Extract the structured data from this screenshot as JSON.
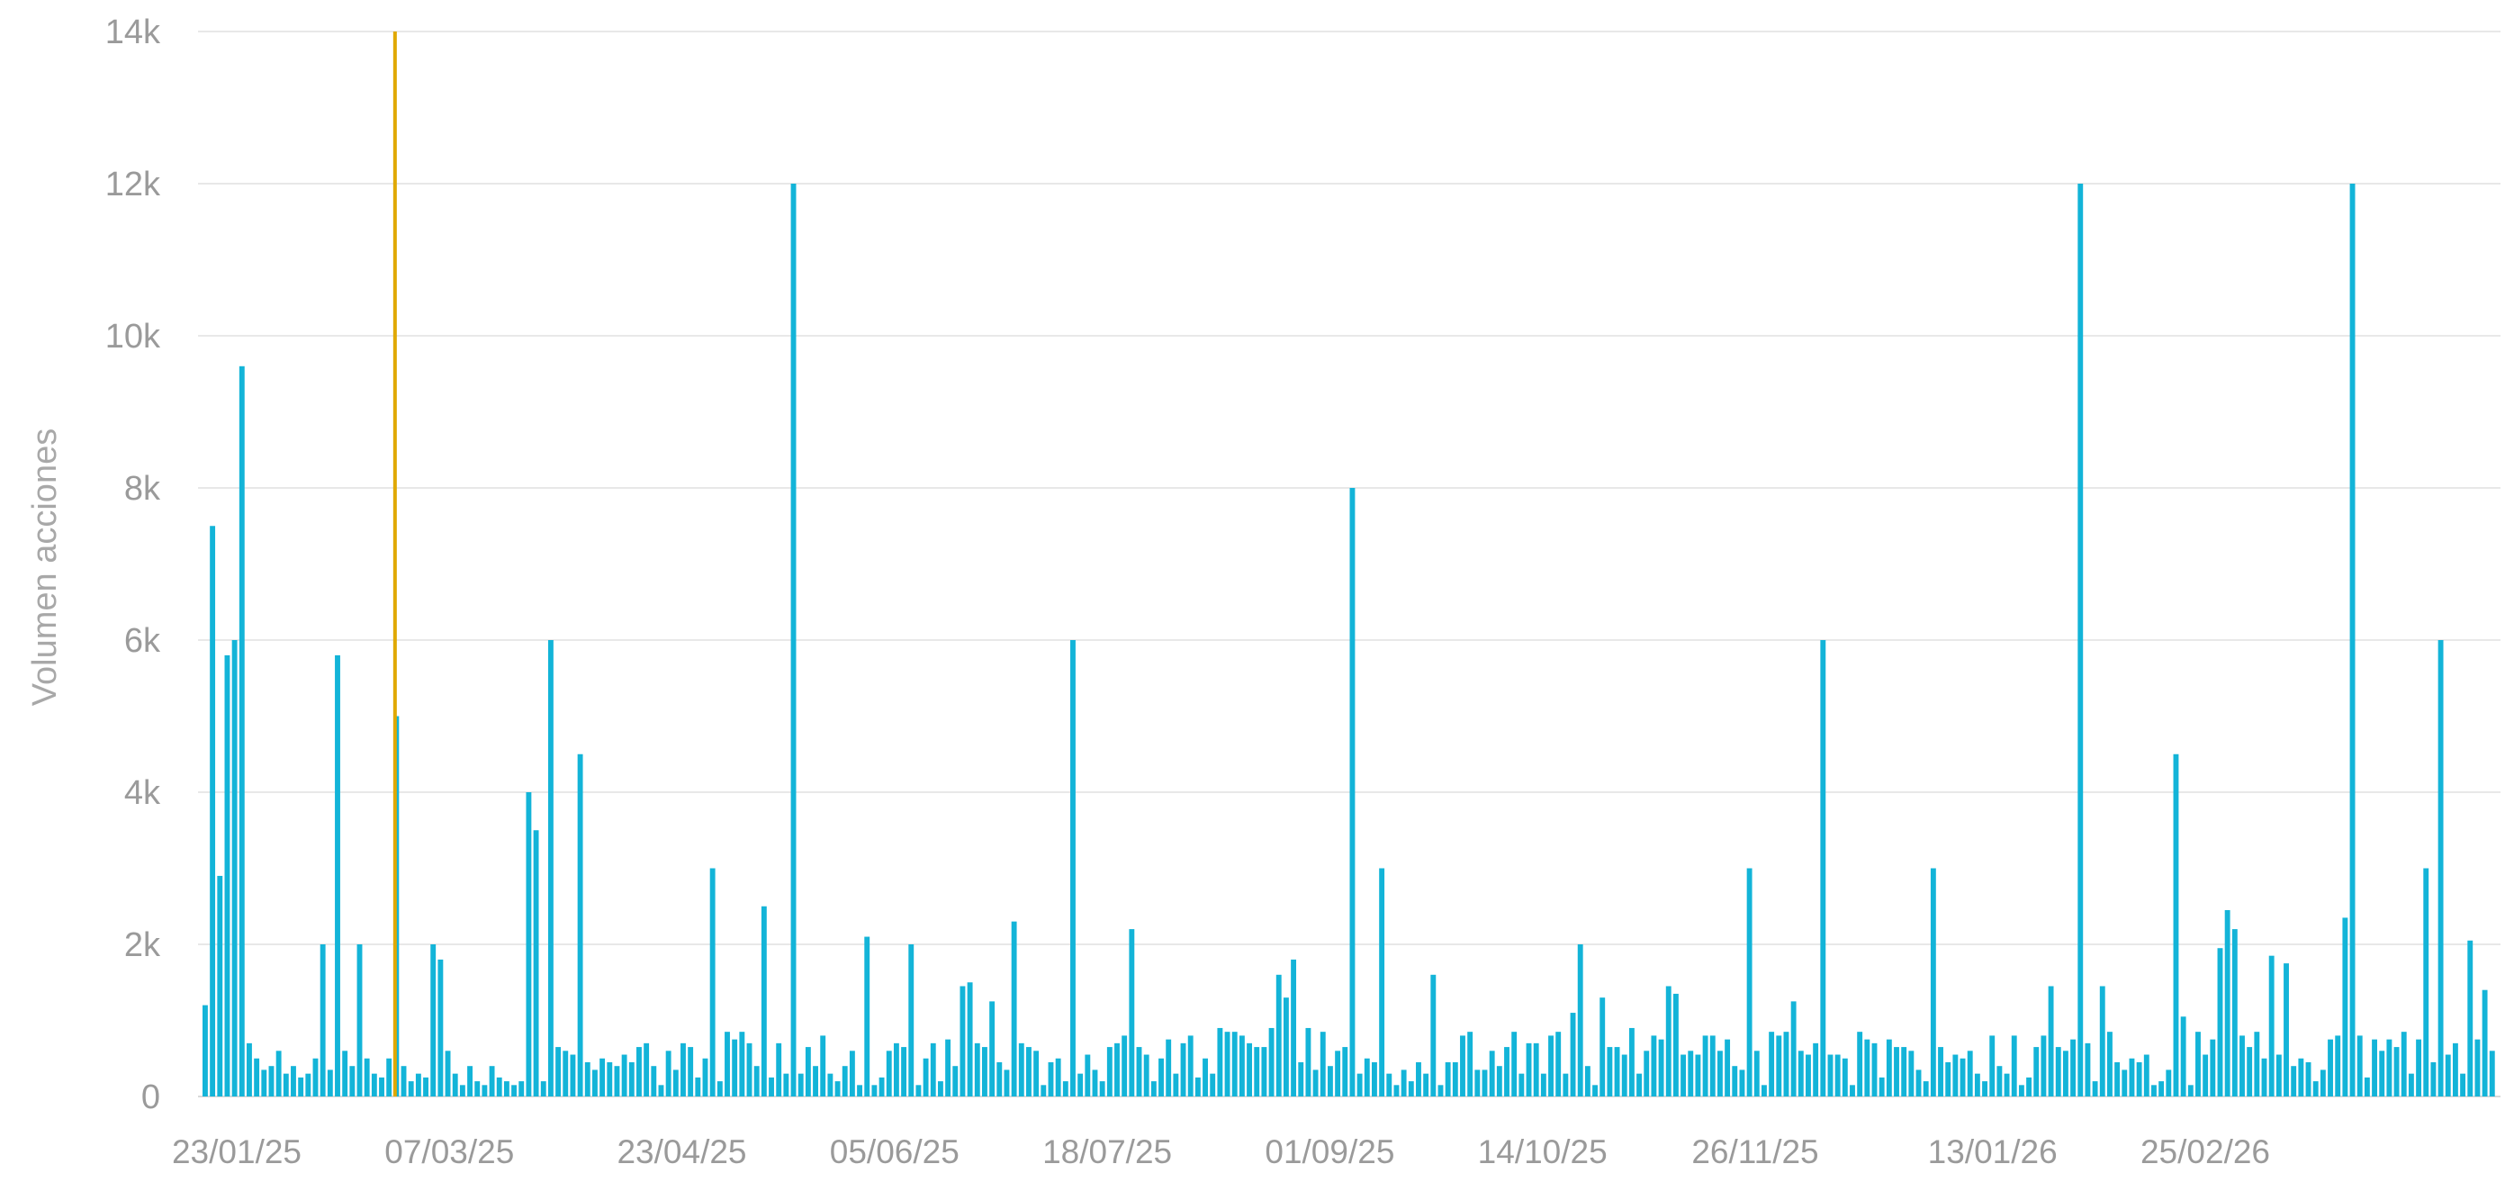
{
  "chart_data": {
    "type": "bar",
    "ylabel": "Volumen acciones",
    "ylim": [
      0,
      14000
    ],
    "y_ticks": [
      {
        "value": 0,
        "label": "0"
      },
      {
        "value": 2000,
        "label": "2k"
      },
      {
        "value": 4000,
        "label": "4k"
      },
      {
        "value": 6000,
        "label": "6k"
      },
      {
        "value": 8000,
        "label": "8k"
      },
      {
        "value": 10000,
        "label": "10k"
      },
      {
        "value": 12000,
        "label": "12k"
      },
      {
        "value": 14000,
        "label": "14k"
      }
    ],
    "x_ticks": [
      {
        "date": "2025-01-23",
        "label": "23/01/25"
      },
      {
        "date": "2025-03-07",
        "label": "07/03/25"
      },
      {
        "date": "2025-04-23",
        "label": "23/04/25"
      },
      {
        "date": "2025-06-05",
        "label": "05/06/25"
      },
      {
        "date": "2025-07-18",
        "label": "18/07/25"
      },
      {
        "date": "2025-09-01",
        "label": "01/09/25"
      },
      {
        "date": "2025-10-14",
        "label": "14/10/25"
      },
      {
        "date": "2025-11-26",
        "label": "26/11/25"
      },
      {
        "date": "2026-01-13",
        "label": "13/01/26"
      },
      {
        "date": "2026-02-25",
        "label": "25/02/26"
      }
    ],
    "grid": true,
    "colors": {
      "bars": "#13b4d8",
      "marker": "#e0a800",
      "grid": "#e8e8e8",
      "text": "#9a9a9a"
    },
    "marker_line": {
      "date": "2025-02-24"
    },
    "series": [
      {
        "values": [
          1200,
          7500,
          2900,
          5800,
          6000,
          9600,
          700,
          500,
          350,
          400,
          600,
          300,
          400,
          250,
          300,
          500,
          2000,
          350,
          5800,
          600,
          400,
          2000,
          500,
          300,
          250,
          500,
          5000,
          400,
          200,
          300,
          250,
          2000,
          1800,
          600,
          300,
          150,
          400,
          200,
          150,
          400,
          250,
          200,
          150,
          200,
          4000,
          3500,
          200,
          6000,
          650,
          600,
          550,
          4500,
          450,
          350,
          500,
          450,
          400,
          550,
          450,
          650,
          700,
          400,
          150,
          600,
          350,
          700,
          650,
          250,
          500,
          3000,
          200,
          850,
          750,
          850,
          700,
          400,
          2500,
          250,
          700,
          300,
          12000,
          300,
          650,
          400,
          800,
          300,
          200,
          400,
          600,
          150,
          2100,
          150,
          250,
          600,
          700,
          650,
          2000,
          150,
          500,
          700,
          200,
          750,
          400,
          1450,
          1500,
          700,
          650,
          1250,
          450,
          350,
          2300,
          700,
          650,
          600,
          150,
          450,
          500,
          200,
          6000,
          300,
          550,
          350,
          200,
          650,
          700,
          800,
          2200,
          650,
          550,
          200,
          500,
          750,
          300,
          700,
          800,
          250,
          500,
          300,
          900,
          850,
          850,
          800,
          700,
          650,
          650,
          900,
          1600,
          1300,
          1800,
          450,
          900,
          350,
          850,
          400,
          600,
          650,
          8000,
          300,
          500,
          450,
          3000,
          300,
          150,
          350,
          200,
          450,
          300,
          1600,
          150,
          450,
          450,
          800,
          850,
          350,
          350,
          600,
          400,
          650,
          850,
          300,
          700,
          700,
          300,
          800,
          850,
          300,
          1100,
          2000,
          400,
          150,
          1300,
          650,
          650,
          550,
          900,
          300,
          600,
          800,
          750,
          1450,
          1350,
          550,
          600,
          550,
          800,
          800,
          600,
          750,
          400,
          350,
          3000,
          600,
          150,
          850,
          800,
          850,
          1250,
          600,
          550,
          700,
          6000,
          550,
          550,
          500,
          150,
          850,
          750,
          700,
          250,
          750,
          650,
          650,
          600,
          350,
          200,
          3000,
          650,
          450,
          550,
          500,
          600,
          300,
          200,
          800,
          400,
          300,
          800,
          150,
          250,
          650,
          800,
          1450,
          650,
          600,
          750,
          12000,
          700,
          200,
          1450,
          850,
          450,
          350,
          500,
          450,
          550,
          150,
          200,
          350,
          4500,
          1050,
          150,
          850,
          550,
          750,
          1950,
          2450,
          2200,
          800,
          650,
          850,
          500,
          1850,
          550,
          1750,
          400,
          500,
          450,
          200,
          350,
          750,
          800,
          2350,
          12000,
          800,
          250,
          750,
          600,
          750,
          650,
          850,
          300,
          750,
          3000,
          450,
          6000,
          550,
          700,
          300,
          2050,
          750,
          1400,
          600
        ]
      }
    ]
  }
}
